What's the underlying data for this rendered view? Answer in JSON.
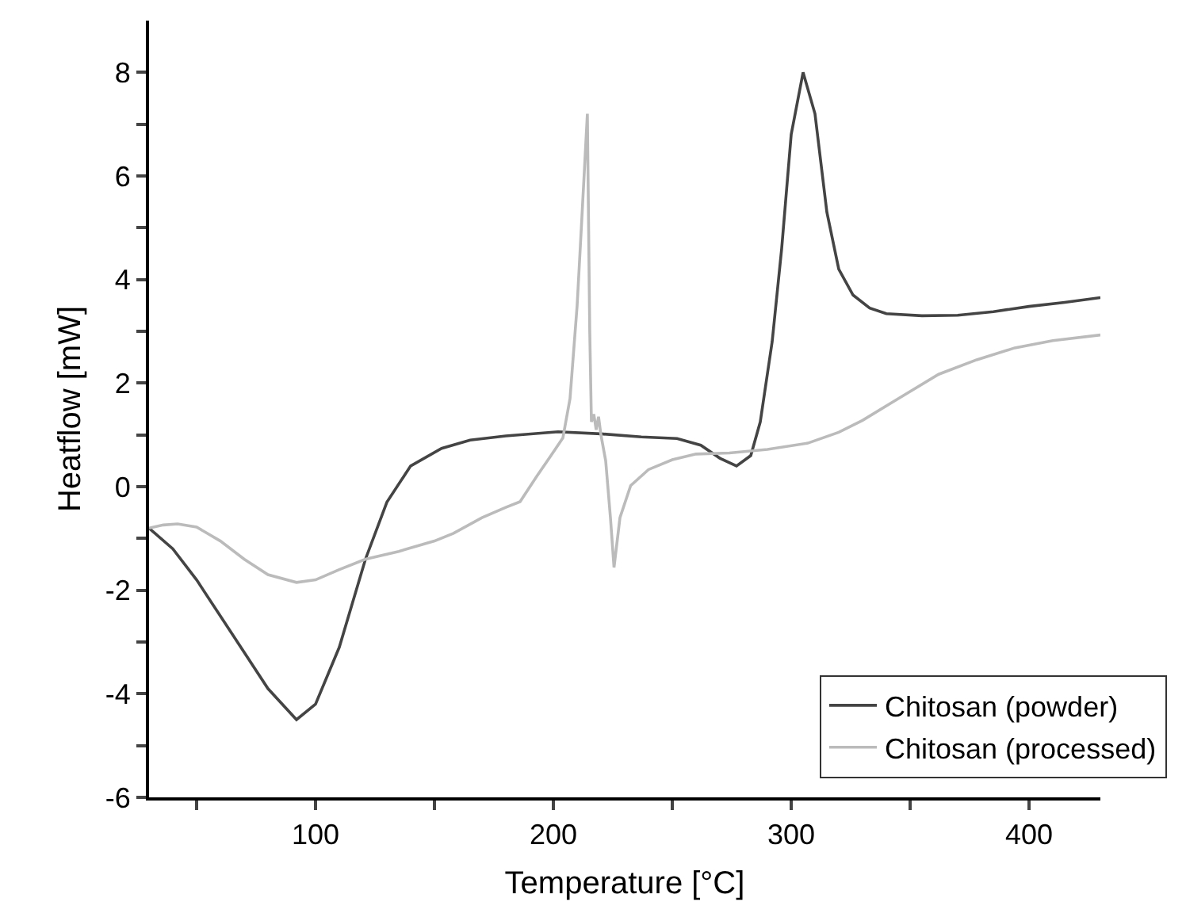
{
  "chart_data": {
    "type": "line",
    "xlabel": "Temperature [°C]",
    "ylabel": "Heatflow [mW]",
    "xlim": [
      30,
      430
    ],
    "xticks": [
      {
        "value": 50,
        "label": null
      },
      100,
      {
        "value": 150,
        "label": null
      },
      200,
      {
        "value": 250,
        "label": null
      },
      300,
      {
        "value": 350,
        "label": null
      },
      400
    ],
    "ylim": [
      -6,
      9
    ],
    "yticks": [
      -6,
      {
        "value": -5,
        "label": null
      },
      -4,
      {
        "value": -3,
        "label": null
      },
      -2,
      {
        "value": -1,
        "label": null
      },
      0,
      {
        "value": 1,
        "label": null
      },
      2,
      {
        "value": 3,
        "label": null
      },
      4,
      {
        "value": 5,
        "label": null
      },
      6,
      {
        "value": 7,
        "label": null
      },
      8
    ],
    "grid": false,
    "legend": "bottom right",
    "marker": "none",
    "line_style": "solid",
    "series": [
      {
        "name": "Chitosan (powder)",
        "color": "#444444",
        "x": [
          30,
          40,
          50,
          60,
          70,
          80,
          92,
          100,
          110,
          121,
          130,
          140,
          153,
          165,
          180,
          202,
          220,
          237,
          252,
          262,
          270,
          277,
          283,
          287,
          292,
          296,
          300,
          305,
          310,
          315,
          320,
          326,
          333,
          340,
          355,
          370,
          385,
          400,
          415,
          430
        ],
        "values": [
          -0.8,
          -1.2,
          -1.8,
          -2.5,
          -3.2,
          -3.9,
          -4.5,
          -4.2,
          -3.1,
          -1.4,
          -0.3,
          0.4,
          0.74,
          0.9,
          0.98,
          1.06,
          1.02,
          0.96,
          0.93,
          0.8,
          0.55,
          0.4,
          0.6,
          1.25,
          2.8,
          4.6,
          6.8,
          8.0,
          7.2,
          5.3,
          4.2,
          3.7,
          3.45,
          3.34,
          3.3,
          3.31,
          3.38,
          3.48,
          3.56,
          3.65
        ]
      },
      {
        "name": "Chitosan (processed)",
        "color": "#bbbbbb",
        "x": [
          30,
          36,
          42,
          50,
          60,
          70,
          80,
          92,
          100,
          110,
          121,
          135,
          150,
          158,
          170,
          180,
          186,
          193,
          199,
          204,
          207,
          210,
          212,
          214.3,
          215.3,
          216,
          217,
          218,
          219,
          220,
          222,
          224,
          225.5,
          228,
          232.5,
          240,
          250,
          260,
          274,
          290,
          307,
          320,
          330,
          345,
          362,
          378,
          394,
          410,
          430
        ],
        "values": [
          -0.8,
          -0.74,
          -0.72,
          -0.78,
          -1.05,
          -1.4,
          -1.7,
          -1.85,
          -1.8,
          -1.6,
          -1.4,
          -1.25,
          -1.05,
          -0.9,
          -0.6,
          -0.4,
          -0.29,
          0.2,
          0.6,
          0.94,
          1.7,
          3.5,
          5.2,
          7.2,
          3.0,
          1.25,
          1.4,
          1.1,
          1.35,
          1.0,
          0.5,
          -0.6,
          -1.56,
          -0.6,
          0.02,
          0.33,
          0.52,
          0.63,
          0.65,
          0.72,
          0.84,
          1.05,
          1.28,
          1.7,
          2.17,
          2.45,
          2.68,
          2.82,
          2.93
        ]
      }
    ]
  }
}
